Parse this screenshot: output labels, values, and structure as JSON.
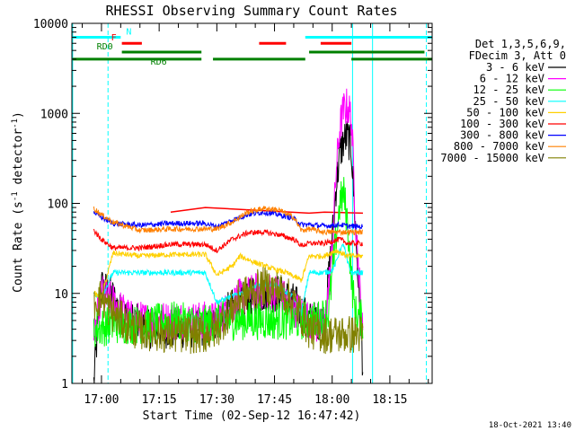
{
  "chart_data": {
    "type": "line",
    "title": "RHESSI Observing Summary Count Rates",
    "xlabel": "Start Time (02-Sep-12 16:47:42)",
    "ylabel_main": "Count Rate (s",
    "ylabel_sup1": "-1",
    "ylabel_mid": " detector",
    "ylabel_sup2": "-1",
    "ylabel_end": ")",
    "yscale": "log",
    "ylim": [
      1,
      10000
    ],
    "xlim_min": [
      -7.7,
      86
    ],
    "x_ticks": [
      {
        "t": 0,
        "label": "17:00"
      },
      {
        "t": 15,
        "label": "17:15"
      },
      {
        "t": 30,
        "label": "17:30"
      },
      {
        "t": 45,
        "label": "17:45"
      },
      {
        "t": 60,
        "label": "18:00"
      },
      {
        "t": 75,
        "label": "18:15"
      }
    ],
    "y_ticks": [
      {
        "v": 1,
        "label": "1"
      },
      {
        "v": 10,
        "label": "10"
      },
      {
        "v": 100,
        "label": "100"
      },
      {
        "v": 1000,
        "label": "1000"
      },
      {
        "v": 10000,
        "label": "10000"
      }
    ],
    "legend_header": [
      "Det 1,3,5,6,9,",
      "FDecim 3, Att 0"
    ],
    "legend_position": "right",
    "series": [
      {
        "name": "3 - 6 keV",
        "color": "#000000",
        "points": [
          [
            -2,
            1
          ],
          [
            -1,
            4
          ],
          [
            0,
            12
          ],
          [
            3,
            9
          ],
          [
            5,
            6
          ],
          [
            8,
            5
          ],
          [
            12,
            4
          ],
          [
            18,
            4
          ],
          [
            24,
            4
          ],
          [
            27,
            4
          ],
          [
            30,
            5
          ],
          [
            36,
            8
          ],
          [
            42,
            10
          ],
          [
            46,
            10
          ],
          [
            50,
            8
          ],
          [
            54,
            5
          ],
          [
            58,
            5
          ],
          [
            60,
            40
          ],
          [
            61,
            150
          ],
          [
            62,
            350
          ],
          [
            63,
            500
          ],
          [
            64,
            550
          ],
          [
            65,
            400
          ],
          [
            66,
            60
          ],
          [
            68,
            1.5
          ]
        ]
      },
      {
        "name": "6 - 12 keV",
        "color": "#ff00ff",
        "points": [
          [
            -2,
            3
          ],
          [
            0,
            10
          ],
          [
            3,
            8
          ],
          [
            8,
            5
          ],
          [
            18,
            5
          ],
          [
            27,
            5
          ],
          [
            30,
            5
          ],
          [
            36,
            9
          ],
          [
            42,
            11
          ],
          [
            46,
            10
          ],
          [
            50,
            7
          ],
          [
            54,
            5
          ],
          [
            58,
            4
          ],
          [
            60,
            30
          ],
          [
            61,
            220
          ],
          [
            62,
            700
          ],
          [
            63,
            1100
          ],
          [
            64,
            1200
          ],
          [
            65,
            900
          ],
          [
            66,
            80
          ],
          [
            68,
            3
          ]
        ]
      },
      {
        "name": "12 - 25 keV",
        "color": "#00ff00",
        "points": [
          [
            -2,
            4
          ],
          [
            3,
            4.5
          ],
          [
            12,
            4.5
          ],
          [
            18,
            5
          ],
          [
            27,
            4.5
          ],
          [
            30,
            5
          ],
          [
            40,
            5
          ],
          [
            50,
            5
          ],
          [
            56,
            5
          ],
          [
            59,
            6
          ],
          [
            61,
            40
          ],
          [
            62,
            100
          ],
          [
            63,
            130
          ],
          [
            64,
            60
          ],
          [
            65,
            15
          ],
          [
            66,
            6
          ],
          [
            68,
            5
          ]
        ]
      },
      {
        "name": "25 - 50 keV",
        "color": "#00ffff",
        "points": [
          [
            -2,
            10
          ],
          [
            0,
            9
          ],
          [
            3,
            17
          ],
          [
            18,
            17
          ],
          [
            27,
            17
          ],
          [
            30,
            8
          ],
          [
            36,
            10
          ],
          [
            42,
            13
          ],
          [
            46,
            12
          ],
          [
            50,
            9
          ],
          [
            52,
            6
          ],
          [
            54,
            17
          ],
          [
            58,
            17
          ],
          [
            60,
            18
          ],
          [
            61,
            22
          ],
          [
            62,
            30
          ],
          [
            63,
            35
          ],
          [
            64,
            22
          ],
          [
            65,
            17
          ],
          [
            68,
            17
          ]
        ]
      },
      {
        "name": "50 - 100 keV",
        "color": "#ffd000",
        "points": [
          [
            -2,
            10
          ],
          [
            0,
            9
          ],
          [
            3,
            28
          ],
          [
            10,
            26
          ],
          [
            18,
            27
          ],
          [
            27,
            27
          ],
          [
            30,
            16
          ],
          [
            34,
            20
          ],
          [
            36,
            26
          ],
          [
            40,
            22
          ],
          [
            44,
            19
          ],
          [
            48,
            17
          ],
          [
            52,
            14
          ],
          [
            54,
            26
          ],
          [
            58,
            26
          ],
          [
            61,
            30
          ],
          [
            64,
            26
          ],
          [
            68,
            26
          ]
        ]
      },
      {
        "name": "100 - 300 keV",
        "color": "#ff0000",
        "points": [
          [
            -2,
            50
          ],
          [
            0,
            40
          ],
          [
            3,
            32
          ],
          [
            10,
            32
          ],
          [
            18,
            35
          ],
          [
            27,
            35
          ],
          [
            30,
            30
          ],
          [
            34,
            40
          ],
          [
            38,
            47
          ],
          [
            42,
            48
          ],
          [
            46,
            45
          ],
          [
            50,
            40
          ],
          [
            52,
            34
          ],
          [
            54,
            36
          ],
          [
            58,
            36
          ],
          [
            62,
            40
          ],
          [
            64,
            36
          ],
          [
            68,
            36
          ]
        ]
      },
      {
        "name": "300 - 800 keV",
        "color": "#0000ff",
        "points": [
          [
            -2,
            80
          ],
          [
            0,
            70
          ],
          [
            3,
            60
          ],
          [
            10,
            57
          ],
          [
            18,
            60
          ],
          [
            27,
            60
          ],
          [
            30,
            55
          ],
          [
            34,
            65
          ],
          [
            38,
            75
          ],
          [
            42,
            80
          ],
          [
            46,
            75
          ],
          [
            50,
            68
          ],
          [
            52,
            58
          ],
          [
            54,
            58
          ],
          [
            58,
            56
          ],
          [
            62,
            58
          ],
          [
            64,
            56
          ],
          [
            68,
            55
          ]
        ]
      },
      {
        "name": "800 - 7000 keV",
        "color": "#ff8000",
        "points": [
          [
            -2,
            88
          ],
          [
            0,
            75
          ],
          [
            3,
            62
          ],
          [
            10,
            50
          ],
          [
            18,
            52
          ],
          [
            27,
            52
          ],
          [
            30,
            52
          ],
          [
            34,
            62
          ],
          [
            38,
            80
          ],
          [
            42,
            88
          ],
          [
            46,
            85
          ],
          [
            50,
            70
          ],
          [
            52,
            50
          ],
          [
            54,
            52
          ],
          [
            58,
            48
          ],
          [
            62,
            48
          ],
          [
            64,
            48
          ],
          [
            68,
            48
          ]
        ]
      },
      {
        "name": "7000 - 15000 keV",
        "color": "#808000",
        "points": [
          [
            -2,
            8
          ],
          [
            0,
            9
          ],
          [
            3,
            6
          ],
          [
            8,
            4
          ],
          [
            18,
            3.5
          ],
          [
            27,
            3.5
          ],
          [
            30,
            4
          ],
          [
            36,
            9
          ],
          [
            42,
            12
          ],
          [
            46,
            11
          ],
          [
            50,
            8
          ],
          [
            54,
            4
          ],
          [
            58,
            3.5
          ],
          [
            62,
            3.5
          ],
          [
            64,
            3.5
          ],
          [
            68,
            3.5
          ]
        ]
      }
    ],
    "red_line_100_300": [
      [
        18,
        80
      ],
      [
        27,
        90
      ],
      [
        54,
        78
      ],
      [
        58,
        80
      ],
      [
        68,
        78
      ]
    ],
    "flag_bars": [
      {
        "label": "N",
        "color": "#00ffff",
        "segments": [
          [
            -7.5,
            5
          ],
          [
            53,
            86
          ]
        ],
        "y": 7000
      },
      {
        "label": "F",
        "color": "#ff0000",
        "segments": [
          [
            5.3,
            10.5
          ],
          [
            41,
            48
          ],
          [
            57,
            65
          ]
        ],
        "y": 6000
      },
      {
        "label": "RD0",
        "color": "#008000",
        "segments": [
          [
            5.3,
            26
          ],
          [
            54,
            84
          ]
        ],
        "y": 4800
      },
      {
        "label": "RD6",
        "color": "#008000",
        "segments": [
          [
            -7.5,
            26
          ],
          [
            29,
            53
          ],
          [
            65,
            86
          ]
        ],
        "y": 4000
      }
    ],
    "vlines": [
      {
        "t": -7.5,
        "style": "solid",
        "color": "#00ffff"
      },
      {
        "t": 1.7,
        "style": "dashed",
        "color": "#00ffff"
      },
      {
        "t": 65.3,
        "style": "solid",
        "color": "#00ffff"
      },
      {
        "t": 70.5,
        "style": "solid",
        "color": "#00ffff"
      },
      {
        "t": 84.5,
        "style": "dashed",
        "color": "#00ffff"
      }
    ],
    "footer_date": "18-Oct-2021 13:40"
  }
}
